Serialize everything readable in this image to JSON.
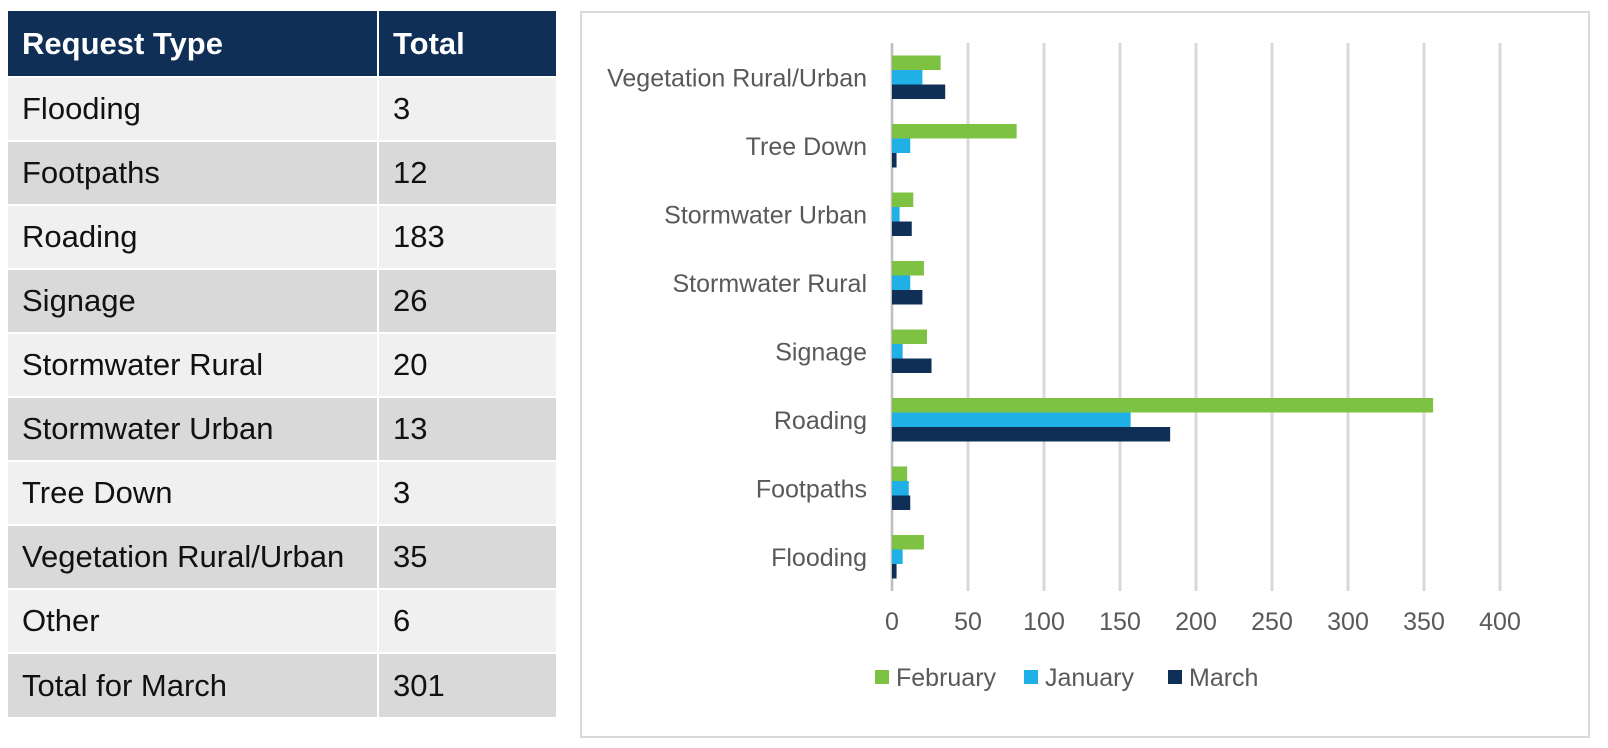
{
  "table": {
    "headers": [
      "Request Type",
      "Total"
    ],
    "rows": [
      [
        "Flooding",
        "3"
      ],
      [
        "Footpaths",
        "12"
      ],
      [
        "Roading",
        "183"
      ],
      [
        "Signage",
        "26"
      ],
      [
        "Stormwater Rural",
        "20"
      ],
      [
        "Stormwater Urban",
        "13"
      ],
      [
        "Tree Down",
        "3"
      ],
      [
        "Vegetation Rural/Urban",
        "35"
      ],
      [
        "Other",
        "6"
      ],
      [
        "Total for March",
        "301"
      ]
    ]
  },
  "chart_data": {
    "type": "bar",
    "orientation": "horizontal",
    "categories": [
      "Flooding",
      "Footpaths",
      "Roading",
      "Signage",
      "Stormwater Rural",
      "Stormwater Urban",
      "Tree Down",
      "Vegetation Rural/Urban"
    ],
    "series": [
      {
        "name": "February",
        "color": "#7dc242",
        "values": [
          21,
          10,
          356,
          23,
          21,
          14,
          82,
          32
        ]
      },
      {
        "name": "January",
        "color": "#1fb1e6",
        "values": [
          7,
          11,
          157,
          7,
          12,
          5,
          12,
          20
        ]
      },
      {
        "name": "March",
        "color": "#0f2f57",
        "values": [
          3,
          12,
          183,
          26,
          20,
          13,
          3,
          35
        ]
      }
    ],
    "xlim": [
      0,
      400
    ],
    "xticks": [
      0,
      50,
      100,
      150,
      200,
      250,
      300,
      350,
      400
    ],
    "grid": true,
    "legend_position": "bottom",
    "title": "",
    "xlabel": "",
    "ylabel": ""
  }
}
